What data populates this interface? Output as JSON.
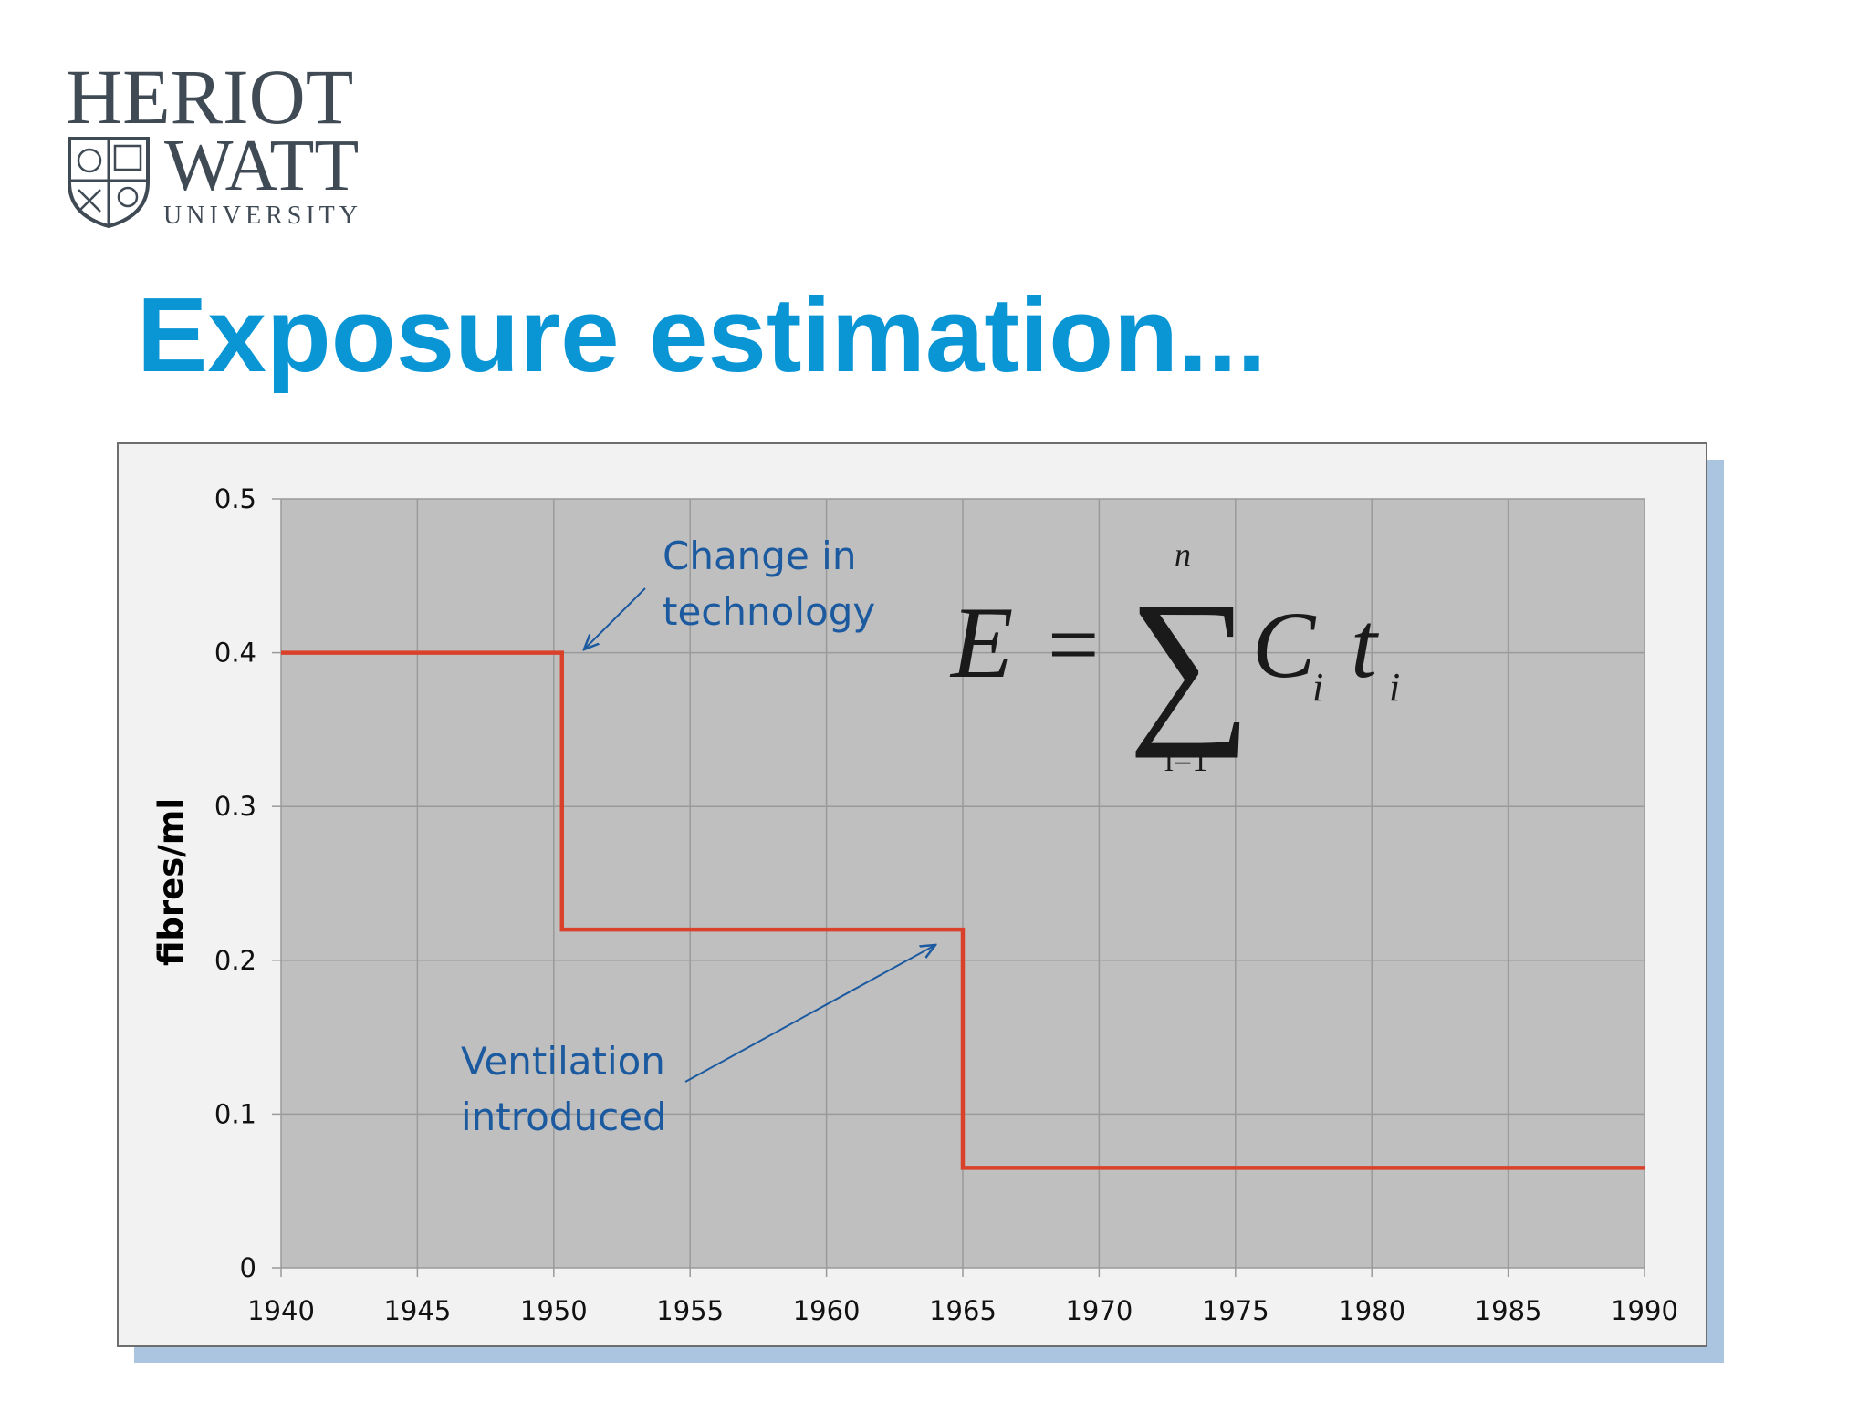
{
  "logo": {
    "line1": "HERIOT",
    "line2": "WATT",
    "line3": "UNIVERSITY"
  },
  "title": "Exposure estimation...",
  "chart_data": {
    "type": "line",
    "y_label": "fibres/ml",
    "series": [
      {
        "color": "#d9412b",
        "x": [
          1940,
          1950.3,
          1950.3,
          1965,
          1965,
          1990
        ],
        "values": [
          0.4,
          0.4,
          0.22,
          0.22,
          0.065,
          0.065
        ]
      }
    ],
    "xlim": [
      1940,
      1990
    ],
    "xticks": [
      1940,
      1945,
      1950,
      1955,
      1960,
      1965,
      1970,
      1975,
      1980,
      1985,
      1990
    ],
    "ylim": [
      0,
      0.5
    ],
    "yticks": [
      0,
      0.1,
      0.2,
      0.3,
      0.4,
      0.5
    ],
    "grid": true,
    "annotations": [
      {
        "lines": [
          "Change in",
          "technology"
        ]
      },
      {
        "lines": [
          "Ventilation",
          "introduced"
        ]
      }
    ],
    "formula": {
      "lhs": "E",
      "operator": "=",
      "upper": "n",
      "lower": "i=1",
      "terms": [
        {
          "symbol": "C",
          "sub": "i"
        },
        {
          "symbol": "t",
          "sub": "i"
        }
      ]
    }
  }
}
